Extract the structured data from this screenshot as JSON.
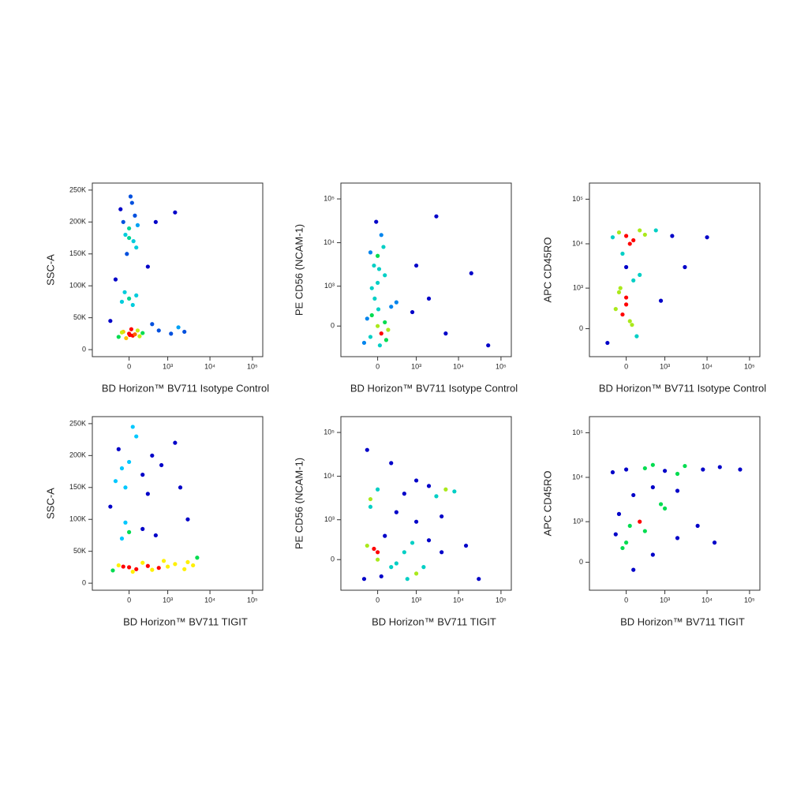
{
  "chart_data": [
    {
      "type": "scatter",
      "xlabel": "BD Horizon™ BV711 Isotype Control",
      "ylabel": "SSC-A",
      "xscale": "biexponential",
      "yscale": "linear",
      "colormap": "density",
      "xlim": [
        -900,
        175000
      ],
      "ylim": [
        -11000,
        261000
      ],
      "xticks": [
        0,
        {
          "value": 1000,
          "label": "10³"
        },
        {
          "value": 10000,
          "label": "10⁴"
        },
        {
          "value": 100000,
          "label": "10⁵"
        }
      ],
      "yticks": [
        0,
        {
          "value": 50000,
          "label": "50K"
        },
        {
          "value": 100000,
          "label": "100K"
        },
        {
          "value": 150000,
          "label": "150K"
        },
        {
          "value": 200000,
          "label": "200K"
        },
        {
          "value": 250000,
          "label": "250K"
        }
      ],
      "x": [
        0,
        50,
        -80,
        120,
        -150,
        200,
        30,
        -40,
        80,
        -100,
        10,
        150,
        600,
        1200,
        2500,
        1800,
        400,
        0,
        -100,
        100,
        50,
        -60,
        0,
        -80,
        60,
        -120,
        100,
        20,
        -30,
        80,
        -50,
        120,
        0,
        40,
        500,
        1500,
        300,
        -200,
        -300
      ],
      "y": [
        25000,
        22000,
        28000,
        30000,
        20000,
        26000,
        32000,
        18000,
        24000,
        27000,
        23000,
        21000,
        30000,
        25000,
        28000,
        35000,
        40000,
        80000,
        75000,
        85000,
        70000,
        90000,
        190000,
        200000,
        170000,
        220000,
        160000,
        240000,
        150000,
        210000,
        180000,
        195000,
        175000,
        230000,
        200000,
        215000,
        130000,
        110000,
        45000
      ]
    },
    {
      "type": "scatter",
      "xlabel": "BD Horizon™ BV711 Isotype Control",
      "ylabel": "PE CD56 (NCAM-1)",
      "xscale": "biexponential",
      "yscale": "biexponential",
      "colormap": "density",
      "xlim": [
        -900,
        175000
      ],
      "ylim": [
        -600,
        230000
      ],
      "xticks": [
        0,
        {
          "value": 1000,
          "label": "10³"
        },
        {
          "value": 10000,
          "label": "10⁴"
        },
        {
          "value": 100000,
          "label": "10⁵"
        }
      ],
      "yticks": [
        0,
        {
          "value": 1000,
          "label": "10³"
        },
        {
          "value": 10000,
          "label": "10⁴"
        },
        {
          "value": 100000,
          "label": "10⁵"
        }
      ],
      "x": [
        0,
        50,
        -80,
        120,
        -150,
        200,
        30,
        -40,
        100,
        -100,
        10,
        150,
        300,
        -200,
        0,
        -50,
        80,
        -100,
        50,
        20,
        -20,
        0,
        100,
        -80,
        800,
        2000,
        5000,
        20000,
        1000,
        50000,
        3000
      ],
      "y": [
        0,
        -100,
        150,
        -200,
        100,
        300,
        -300,
        500,
        50,
        -150,
        250,
        -50,
        400,
        -250,
        5000,
        3000,
        8000,
        6000,
        15000,
        2500,
        30000,
        1200,
        1800,
        900,
        200,
        500,
        -100,
        2000,
        3000,
        -300,
        40000
      ]
    },
    {
      "type": "scatter",
      "xlabel": "BD Horizon™ BV711 Isotype Control",
      "ylabel": "APC CD45RO",
      "xscale": "biexponential",
      "yscale": "biexponential",
      "colormap": "density",
      "xlim": [
        -900,
        175000
      ],
      "ylim": [
        -500,
        230000
      ],
      "xticks": [
        0,
        {
          "value": 1000,
          "label": "10³"
        },
        {
          "value": 10000,
          "label": "10⁴"
        },
        {
          "value": 100000,
          "label": "10⁵"
        }
      ],
      "yticks": [
        0,
        {
          "value": 1000,
          "label": "10³"
        },
        {
          "value": 10000,
          "label": "10⁴"
        },
        {
          "value": 100000,
          "label": "10⁵"
        }
      ],
      "x": [
        0,
        -100,
        100,
        200,
        -200,
        50,
        300,
        -50,
        0,
        100,
        -100,
        0,
        50,
        -50,
        150,
        0,
        -150,
        200,
        80,
        -80,
        800,
        1500,
        3000,
        10000,
        600,
        -300
      ],
      "y": [
        15000,
        18000,
        12000,
        20000,
        14000,
        10000,
        16000,
        6000,
        3000,
        1500,
        800,
        400,
        100,
        200,
        -100,
        600,
        300,
        2000,
        50,
        1000,
        500,
        15000,
        3000,
        14000,
        20000,
        -200
      ]
    },
    {
      "type": "scatter",
      "xlabel": "BD Horizon™ BV711 TIGIT",
      "ylabel": "SSC-A",
      "xscale": "biexponential",
      "yscale": "linear",
      "colormap": "density",
      "xlim": [
        -900,
        175000
      ],
      "ylim": [
        -11000,
        261000
      ],
      "xticks": [
        0,
        {
          "value": 1000,
          "label": "10³"
        },
        {
          "value": 10000,
          "label": "10⁴"
        },
        {
          "value": 100000,
          "label": "10⁵"
        }
      ],
      "yticks": [
        0,
        {
          "value": 50000,
          "label": "50K"
        },
        {
          "value": 100000,
          "label": "100K"
        },
        {
          "value": 150000,
          "label": "150K"
        },
        {
          "value": 200000,
          "label": "200K"
        },
        {
          "value": 250000,
          "label": "250K"
        }
      ],
      "x": [
        0,
        100,
        -150,
        300,
        600,
        1000,
        1500,
        2500,
        4000,
        -250,
        200,
        50,
        800,
        3000,
        -80,
        400,
        0,
        -100,
        200,
        500,
        -50,
        0,
        -150,
        200,
        -200,
        400,
        100,
        -50,
        700,
        1500,
        50,
        -100,
        300,
        2000,
        3000,
        5000,
        -300
      ],
      "y": [
        25000,
        22000,
        28000,
        27000,
        24000,
        26000,
        30000,
        22000,
        28000,
        20000,
        32000,
        18000,
        35000,
        33000,
        26000,
        21000,
        80000,
        70000,
        85000,
        75000,
        95000,
        190000,
        210000,
        170000,
        160000,
        200000,
        230000,
        150000,
        185000,
        220000,
        245000,
        180000,
        140000,
        150000,
        100000,
        40000,
        120000
      ]
    },
    {
      "type": "scatter",
      "xlabel": "BD Horizon™ BV711 TIGIT",
      "ylabel": "PE CD56 (NCAM-1)",
      "xscale": "biexponential",
      "yscale": "biexponential",
      "colormap": "density",
      "xlim": [
        -900,
        175000
      ],
      "ylim": [
        -600,
        230000
      ],
      "xticks": [
        0,
        {
          "value": 1000,
          "label": "10³"
        },
        {
          "value": 10000,
          "label": "10⁴"
        },
        {
          "value": 100000,
          "label": "10⁵"
        }
      ],
      "yticks": [
        0,
        {
          "value": 1000,
          "label": "10³"
        },
        {
          "value": 10000,
          "label": "10⁴"
        },
        {
          "value": 100000,
          "label": "10⁵"
        }
      ],
      "x": [
        0,
        200,
        -150,
        500,
        1000,
        2000,
        -200,
        100,
        300,
        -50,
        800,
        1500,
        4000,
        50,
        0,
        600,
        0,
        500,
        2000,
        5000,
        -100,
        1000,
        3000,
        8000,
        300,
        1000,
        -100,
        4000,
        15000,
        30000,
        200,
        -150
      ],
      "y": [
        0,
        -100,
        200,
        100,
        -200,
        300,
        -300,
        400,
        -50,
        150,
        250,
        -100,
        100,
        -250,
        100,
        -300,
        5000,
        4000,
        6000,
        5000,
        3000,
        8000,
        3500,
        4500,
        1500,
        900,
        2000,
        1200,
        200,
        -300,
        20000,
        40000
      ]
    },
    {
      "type": "scatter",
      "xlabel": "BD Horizon™ BV711 TIGIT",
      "ylabel": "APC CD45RO",
      "xscale": "biexponential",
      "yscale": "biexponential",
      "colormap": "density",
      "xlim": [
        -900,
        175000
      ],
      "ylim": [
        -500,
        230000
      ],
      "xticks": [
        0,
        {
          "value": 1000,
          "label": "10³"
        },
        {
          "value": 10000,
          "label": "10⁴"
        },
        {
          "value": 100000,
          "label": "10⁵"
        }
      ],
      "yticks": [
        0,
        {
          "value": 1000,
          "label": "10³"
        },
        {
          "value": 10000,
          "label": "10⁴"
        },
        {
          "value": 100000,
          "label": "10⁵"
        }
      ],
      "x": [
        0,
        300,
        1000,
        3000,
        8000,
        20000,
        -200,
        500,
        2000,
        60000,
        0,
        200,
        -150,
        500,
        1000,
        100,
        -100,
        300,
        2000,
        50,
        800,
        -50,
        500,
        2000,
        100,
        6000,
        15000
      ],
      "y": [
        15000,
        16000,
        14000,
        18000,
        15000,
        17000,
        13000,
        19000,
        12000,
        15000,
        300,
        1000,
        500,
        100,
        2000,
        -100,
        1500,
        600,
        400,
        800,
        2500,
        200,
        6000,
        5000,
        4000,
        800,
        300
      ]
    }
  ]
}
